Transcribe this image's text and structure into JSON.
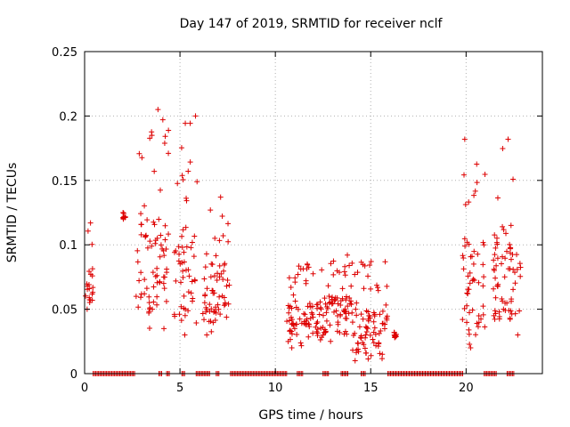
{
  "chart_data": {
    "type": "scatter",
    "title": "Day 147 of 2019, SRMTID for receiver nclf",
    "xlabel": "GPS time / hours",
    "ylabel": "SRMTID / TECUs",
    "xlim": [
      0,
      24
    ],
    "ylim": [
      0,
      0.25
    ],
    "xticks": [
      0,
      5,
      10,
      15,
      20
    ],
    "xtick_labels": [
      "0",
      "5",
      "10",
      "15",
      "20"
    ],
    "yticks": [
      0,
      0.05,
      0.1,
      0.15,
      0.2,
      0.25
    ],
    "ytick_labels": [
      "0",
      "0.05",
      "0.1",
      "0.15",
      "0.2",
      "0.25"
    ],
    "grid": true,
    "marker": "+",
    "series_color": "#dd0000",
    "clusters": [
      {
        "x": [
          0.0,
          0.45
        ],
        "y": [
          0.05,
          0.117
        ]
      },
      {
        "x": [
          2.0,
          2.15
        ],
        "y": [
          0.12,
          0.125
        ]
      },
      {
        "x": [
          2.7,
          4.4
        ],
        "y": [
          0.035,
          0.205
        ]
      },
      {
        "x": [
          4.7,
          5.9
        ],
        "y": [
          0.03,
          0.2
        ]
      },
      {
        "x": [
          6.2,
          7.6
        ],
        "y": [
          0.03,
          0.137
        ]
      },
      {
        "x": [
          10.6,
          12.5
        ],
        "y": [
          0.02,
          0.085
        ]
      },
      {
        "x": [
          12.5,
          14.0
        ],
        "y": [
          0.025,
          0.092
        ]
      },
      {
        "x": [
          14.0,
          15.9
        ],
        "y": [
          0.01,
          0.087
        ]
      },
      {
        "x": [
          16.2,
          16.4
        ],
        "y": [
          0.028,
          0.032
        ]
      },
      {
        "x": [
          19.8,
          21.0
        ],
        "y": [
          0.02,
          0.182
        ]
      },
      {
        "x": [
          21.4,
          22.9
        ],
        "y": [
          0.03,
          0.182
        ]
      }
    ],
    "zero_bands": [
      [
        0.45,
        2.65
      ],
      [
        3.9,
        4.05
      ],
      [
        4.3,
        4.45
      ],
      [
        5.1,
        5.3
      ],
      [
        5.85,
        6.6
      ],
      [
        6.9,
        7.05
      ],
      [
        7.65,
        10.65
      ],
      [
        11.15,
        11.45
      ],
      [
        12.5,
        12.8
      ],
      [
        13.45,
        13.8
      ],
      [
        14.5,
        14.75
      ],
      [
        15.9,
        19.85
      ],
      [
        20.95,
        21.6
      ],
      [
        22.15,
        22.5
      ]
    ]
  }
}
